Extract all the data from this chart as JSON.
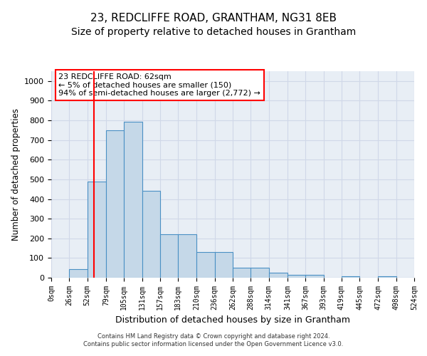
{
  "title": "23, REDCLIFFE ROAD, GRANTHAM, NG31 8EB",
  "subtitle": "Size of property relative to detached houses in Grantham",
  "xlabel": "Distribution of detached houses by size in Grantham",
  "ylabel": "Number of detached properties",
  "footer_line1": "Contains HM Land Registry data © Crown copyright and database right 2024.",
  "footer_line2": "Contains public sector information licensed under the Open Government Licence v3.0.",
  "annotation_line1": "23 REDCLIFFE ROAD: 62sqm",
  "annotation_line2": "← 5% of detached houses are smaller (150)",
  "annotation_line3": "94% of semi-detached houses are larger (2,772) →",
  "bar_left_edges": [
    0,
    26,
    52,
    79,
    105,
    131,
    157,
    183,
    210,
    236,
    262,
    288,
    314,
    341,
    367,
    393,
    419,
    445,
    472,
    498
  ],
  "bar_widths": [
    26,
    26,
    27,
    26,
    26,
    26,
    26,
    27,
    26,
    26,
    26,
    26,
    27,
    26,
    26,
    26,
    26,
    27,
    26,
    26
  ],
  "bar_heights": [
    0,
    42,
    487,
    750,
    793,
    440,
    220,
    220,
    130,
    130,
    52,
    52,
    27,
    16,
    16,
    0,
    8,
    0,
    8,
    0
  ],
  "bar_color": "#c5d8e8",
  "bar_edge_color": "#4a90c4",
  "red_line_x": 62,
  "ylim": [
    0,
    1050
  ],
  "xlim": [
    0,
    524
  ],
  "tick_labels": [
    "0sqm",
    "26sqm",
    "52sqm",
    "79sqm",
    "105sqm",
    "131sqm",
    "157sqm",
    "183sqm",
    "210sqm",
    "236sqm",
    "262sqm",
    "288sqm",
    "314sqm",
    "341sqm",
    "367sqm",
    "393sqm",
    "419sqm",
    "445sqm",
    "472sqm",
    "498sqm",
    "524sqm"
  ],
  "tick_positions": [
    0,
    26,
    52,
    79,
    105,
    131,
    157,
    183,
    210,
    236,
    262,
    288,
    314,
    341,
    367,
    393,
    419,
    445,
    472,
    498,
    524
  ],
  "background_color": "#ffffff",
  "grid_color": "#d0d8e8",
  "title_fontsize": 11,
  "subtitle_fontsize": 10,
  "annotation_box_color": "#ff0000",
  "annotation_fill_color": "#ffffff",
  "yticks": [
    0,
    100,
    200,
    300,
    400,
    500,
    600,
    700,
    800,
    900,
    1000
  ]
}
